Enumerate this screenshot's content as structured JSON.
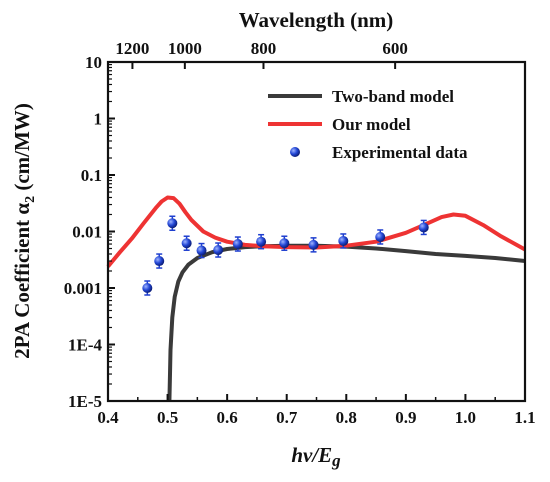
{
  "chart_data": {
    "type": "line",
    "xlabel": "hν/E",
    "xlabel_sub": "g",
    "ylabel": "2PA Coefficient α",
    "ylabel_sub": "2",
    "ylabel_unit": " (cm/MW)",
    "top_xlabel": "Wavelength (nm)",
    "xlim": [
      0.4,
      1.1
    ],
    "ylim": [
      1e-05,
      10
    ],
    "yscale": "log",
    "x_ticks": [
      "0.4",
      "0.5",
      "0.6",
      "0.7",
      "0.8",
      "0.9",
      "1.0",
      "1.1"
    ],
    "y_ticks": [
      "1E-5",
      "1E-4",
      "0.001",
      "0.01",
      "0.1",
      "1",
      "10"
    ],
    "top_ticks": [
      {
        "label": "1200",
        "x": 0.441
      },
      {
        "label": "1000",
        "x": 0.529
      },
      {
        "label": "800",
        "x": 0.661
      },
      {
        "label": "600",
        "x": 0.882
      }
    ],
    "legend_position": "top-right",
    "colors": {
      "two_band": "#3a3a3a",
      "our_model": "#ee3333",
      "experimental": "#1f3fcf"
    },
    "series": [
      {
        "name": "Two-band model",
        "kind": "line",
        "x": [
          0.503,
          0.504,
          0.505,
          0.508,
          0.512,
          0.518,
          0.525,
          0.535,
          0.55,
          0.575,
          0.6,
          0.63,
          0.66,
          0.7,
          0.75,
          0.8,
          0.85,
          0.9,
          0.95,
          1.0,
          1.05,
          1.1
        ],
        "y": [
          1e-05,
          3e-05,
          8e-05,
          0.0003,
          0.0007,
          0.0013,
          0.0019,
          0.0026,
          0.0034,
          0.0043,
          0.0049,
          0.0053,
          0.0055,
          0.0056,
          0.0056,
          0.0054,
          0.005,
          0.0045,
          0.004,
          0.0037,
          0.0034,
          0.003
        ]
      },
      {
        "name": "Our model",
        "kind": "line",
        "x": [
          0.4,
          0.42,
          0.44,
          0.46,
          0.48,
          0.49,
          0.5,
          0.51,
          0.52,
          0.53,
          0.54,
          0.56,
          0.58,
          0.6,
          0.63,
          0.66,
          0.7,
          0.75,
          0.8,
          0.85,
          0.9,
          0.93,
          0.96,
          0.98,
          1.0,
          1.03,
          1.06,
          1.1
        ],
        "y": [
          0.0024,
          0.0043,
          0.0075,
          0.014,
          0.026,
          0.034,
          0.04,
          0.039,
          0.031,
          0.022,
          0.016,
          0.01,
          0.0078,
          0.0066,
          0.0058,
          0.0055,
          0.0053,
          0.0052,
          0.0056,
          0.0066,
          0.0095,
          0.013,
          0.018,
          0.02,
          0.019,
          0.013,
          0.0082,
          0.0048
        ]
      },
      {
        "name": "Experimental data",
        "kind": "scatter",
        "x": [
          0.466,
          0.486,
          0.508,
          0.532,
          0.557,
          0.585,
          0.618,
          0.657,
          0.696,
          0.745,
          0.795,
          0.857,
          0.93
        ],
        "y": [
          0.001,
          0.003,
          0.014,
          0.0062,
          0.0046,
          0.0047,
          0.006,
          0.0066,
          0.0062,
          0.0058,
          0.0068,
          0.008,
          0.0118
        ]
      }
    ]
  }
}
